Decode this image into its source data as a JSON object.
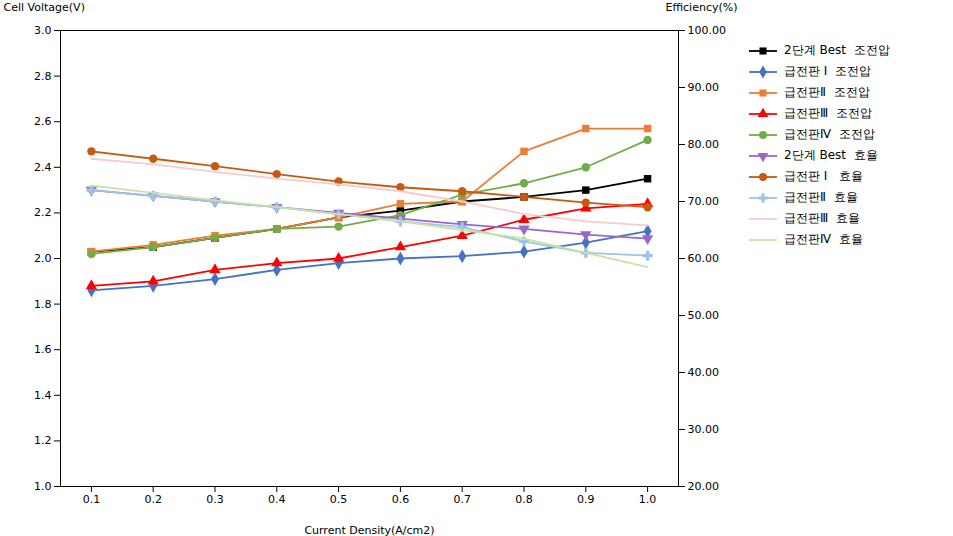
{
  "chart_data": {
    "type": "line",
    "xlabel": "Current Density(A/cm2)",
    "ylabel": "Cell Voltage(V)",
    "y2label": "Efficiency(%)",
    "x": [
      0.1,
      0.2,
      0.3,
      0.4,
      0.5,
      0.6,
      0.7,
      0.8,
      0.9,
      1.0
    ],
    "xlim": [
      0.05,
      1.05
    ],
    "xticks": [
      0.1,
      0.2,
      0.3,
      0.4,
      0.5,
      0.6,
      0.7,
      0.8,
      0.9,
      {
        "value": 1.0,
        "label": "1.0"
      }
    ],
    "ylim": [
      1.0,
      3.0
    ],
    "yticks": [
      {
        "value": 1.0,
        "label": "1.0"
      },
      1.2,
      1.4,
      1.6,
      1.8,
      {
        "value": 2.0,
        "label": "2.0"
      },
      2.2,
      2.4,
      2.6,
      2.8,
      {
        "value": 3.0,
        "label": "3.0"
      }
    ],
    "y2lim": [
      20.0,
      100.0
    ],
    "y2ticks": [
      {
        "value": 20,
        "label": "20.00"
      },
      {
        "value": 30,
        "label": "30.00"
      },
      {
        "value": 40,
        "label": "40.00"
      },
      {
        "value": 50,
        "label": "50.00"
      },
      {
        "value": 60,
        "label": "60.00"
      },
      {
        "value": 70,
        "label": "70.00"
      },
      {
        "value": 80,
        "label": "80.00"
      },
      {
        "value": 90,
        "label": "90.00"
      },
      {
        "value": 100,
        "label": "100.00"
      }
    ],
    "grid": false,
    "legend": "right",
    "series": [
      {
        "name": "2단계 Best  조전압",
        "color": "#000000",
        "marker": "square",
        "line_style": "solid",
        "values": [
          2.03,
          2.05,
          2.09,
          2.13,
          2.18,
          2.21,
          2.25,
          2.27,
          2.3,
          2.35
        ]
      },
      {
        "name": "급전판 I  조전압",
        "color": "#4472C4",
        "marker": "diamond",
        "line_style": "solid",
        "values": [
          1.86,
          1.88,
          1.91,
          1.95,
          1.98,
          2.0,
          2.01,
          2.03,
          2.07,
          2.12
        ]
      },
      {
        "name": "급전판Ⅱ  조전압",
        "color": "#ED7D31",
        "marker": "square",
        "line_style": "solid",
        "values": [
          2.03,
          2.06,
          2.1,
          2.13,
          2.18,
          2.24,
          2.25,
          2.47,
          2.57,
          2.57
        ]
      },
      {
        "name": "급전판Ⅲ  조전압",
        "color": "#FF0000",
        "marker": "triangle-up",
        "line_style": "solid",
        "values": [
          1.88,
          1.9,
          1.95,
          1.98,
          2.0,
          2.05,
          2.1,
          2.17,
          2.22,
          2.24
        ]
      },
      {
        "name": "급전판Ⅳ  조전압",
        "color": "#70AD47",
        "marker": "circle",
        "line_style": "solid",
        "values": [
          2.02,
          2.05,
          2.09,
          2.13,
          2.14,
          2.19,
          2.28,
          2.33,
          2.4,
          2.52
        ]
      },
      {
        "name": "2단계 Best  효율",
        "axis": "y2",
        "color": "#9966CC",
        "marker": "triangle-down",
        "line_style": "solid",
        "values": [
          72.0,
          71.0,
          70.0,
          69.0,
          68.0,
          67.0,
          66.0,
          65.2,
          64.2,
          63.5
        ]
      },
      {
        "name": "급전판 I   효율",
        "axis": "y2",
        "color": "#C55A11",
        "marker": "circle",
        "line_style": "solid",
        "values": [
          78.8,
          77.5,
          76.2,
          74.8,
          73.5,
          72.5,
          71.8,
          70.8,
          69.8,
          69.0
        ]
      },
      {
        "name": "급전판Ⅱ  효율",
        "axis": "y2",
        "color": "#9DC3E6",
        "marker": "plus",
        "line_style": "solid",
        "values": [
          72.0,
          71.0,
          70.0,
          69.0,
          67.8,
          66.5,
          65.5,
          63.0,
          61.0,
          60.5
        ]
      },
      {
        "name": "급전판Ⅲ  효율",
        "axis": "y2",
        "color": "#F4CCCC",
        "marker": "none",
        "line_style": "solid",
        "values": [
          77.5,
          76.5,
          75.2,
          74.0,
          73.0,
          71.8,
          70.0,
          67.8,
          66.5,
          65.8
        ]
      },
      {
        "name": "급전판Ⅳ  효율",
        "axis": "y2",
        "color": "#C9E2A3",
        "marker": "none",
        "line_style": "solid",
        "values": [
          72.8,
          71.5,
          70.2,
          69.0,
          67.8,
          66.5,
          65.0,
          63.5,
          61.0,
          58.5
        ]
      }
    ]
  }
}
